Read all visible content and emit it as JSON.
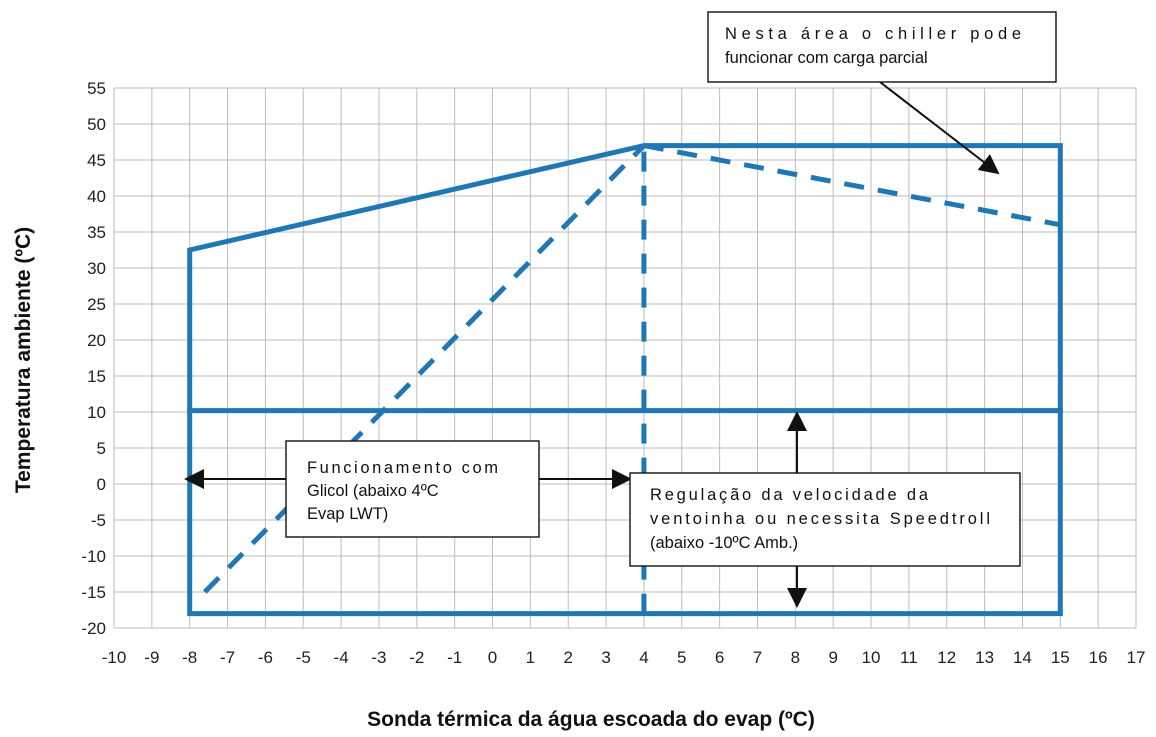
{
  "chart_data": {
    "type": "line",
    "title": "",
    "xlabel": "Sonda térmica da água escoada do evap (ºC)",
    "ylabel": "Temperatura ambiente (ºC)",
    "xlim": [
      -10,
      17
    ],
    "ylim": [
      -20,
      55
    ],
    "xticks": [
      -10,
      -9,
      -8,
      -7,
      -6,
      -5,
      -4,
      -3,
      -2,
      -1,
      0,
      1,
      2,
      3,
      4,
      5,
      6,
      7,
      8,
      9,
      10,
      11,
      12,
      13,
      14,
      15,
      16,
      17
    ],
    "yticks": [
      55,
      50,
      45,
      40,
      35,
      30,
      25,
      20,
      15,
      10,
      5,
      0,
      -5,
      -10,
      -15,
      -20
    ],
    "grid": true,
    "color": "#1f77b4",
    "series": [
      {
        "style": "solid",
        "x": [
          -8,
          -8,
          4,
          15,
          15,
          -8
        ],
        "y": [
          -18,
          32.5,
          47,
          47,
          -18,
          -18
        ]
      },
      {
        "style": "solid",
        "x": [
          -8,
          15
        ],
        "y": [
          10.2,
          10.2
        ]
      },
      {
        "style": "dashed",
        "x": [
          -7.6,
          4
        ],
        "y": [
          -15,
          47
        ]
      },
      {
        "style": "dashed",
        "x": [
          4,
          4
        ],
        "y": [
          -18,
          47
        ]
      },
      {
        "style": "dashed",
        "x": [
          4,
          15
        ],
        "y": [
          47,
          36
        ]
      }
    ],
    "annotations": [
      {
        "lines": [
          "Nesta área o chiller pode",
          "funcionar com carga parcial"
        ]
      },
      {
        "lines": [
          "Funcionamento com",
          "Glicol (abaixo 4ºC",
          "Evap LWT)"
        ]
      },
      {
        "lines": [
          "Regulação da velocidade da",
          "ventoinha ou necessita Speedtroll",
          "(abaixo -10ºC Amb.)"
        ]
      }
    ]
  }
}
